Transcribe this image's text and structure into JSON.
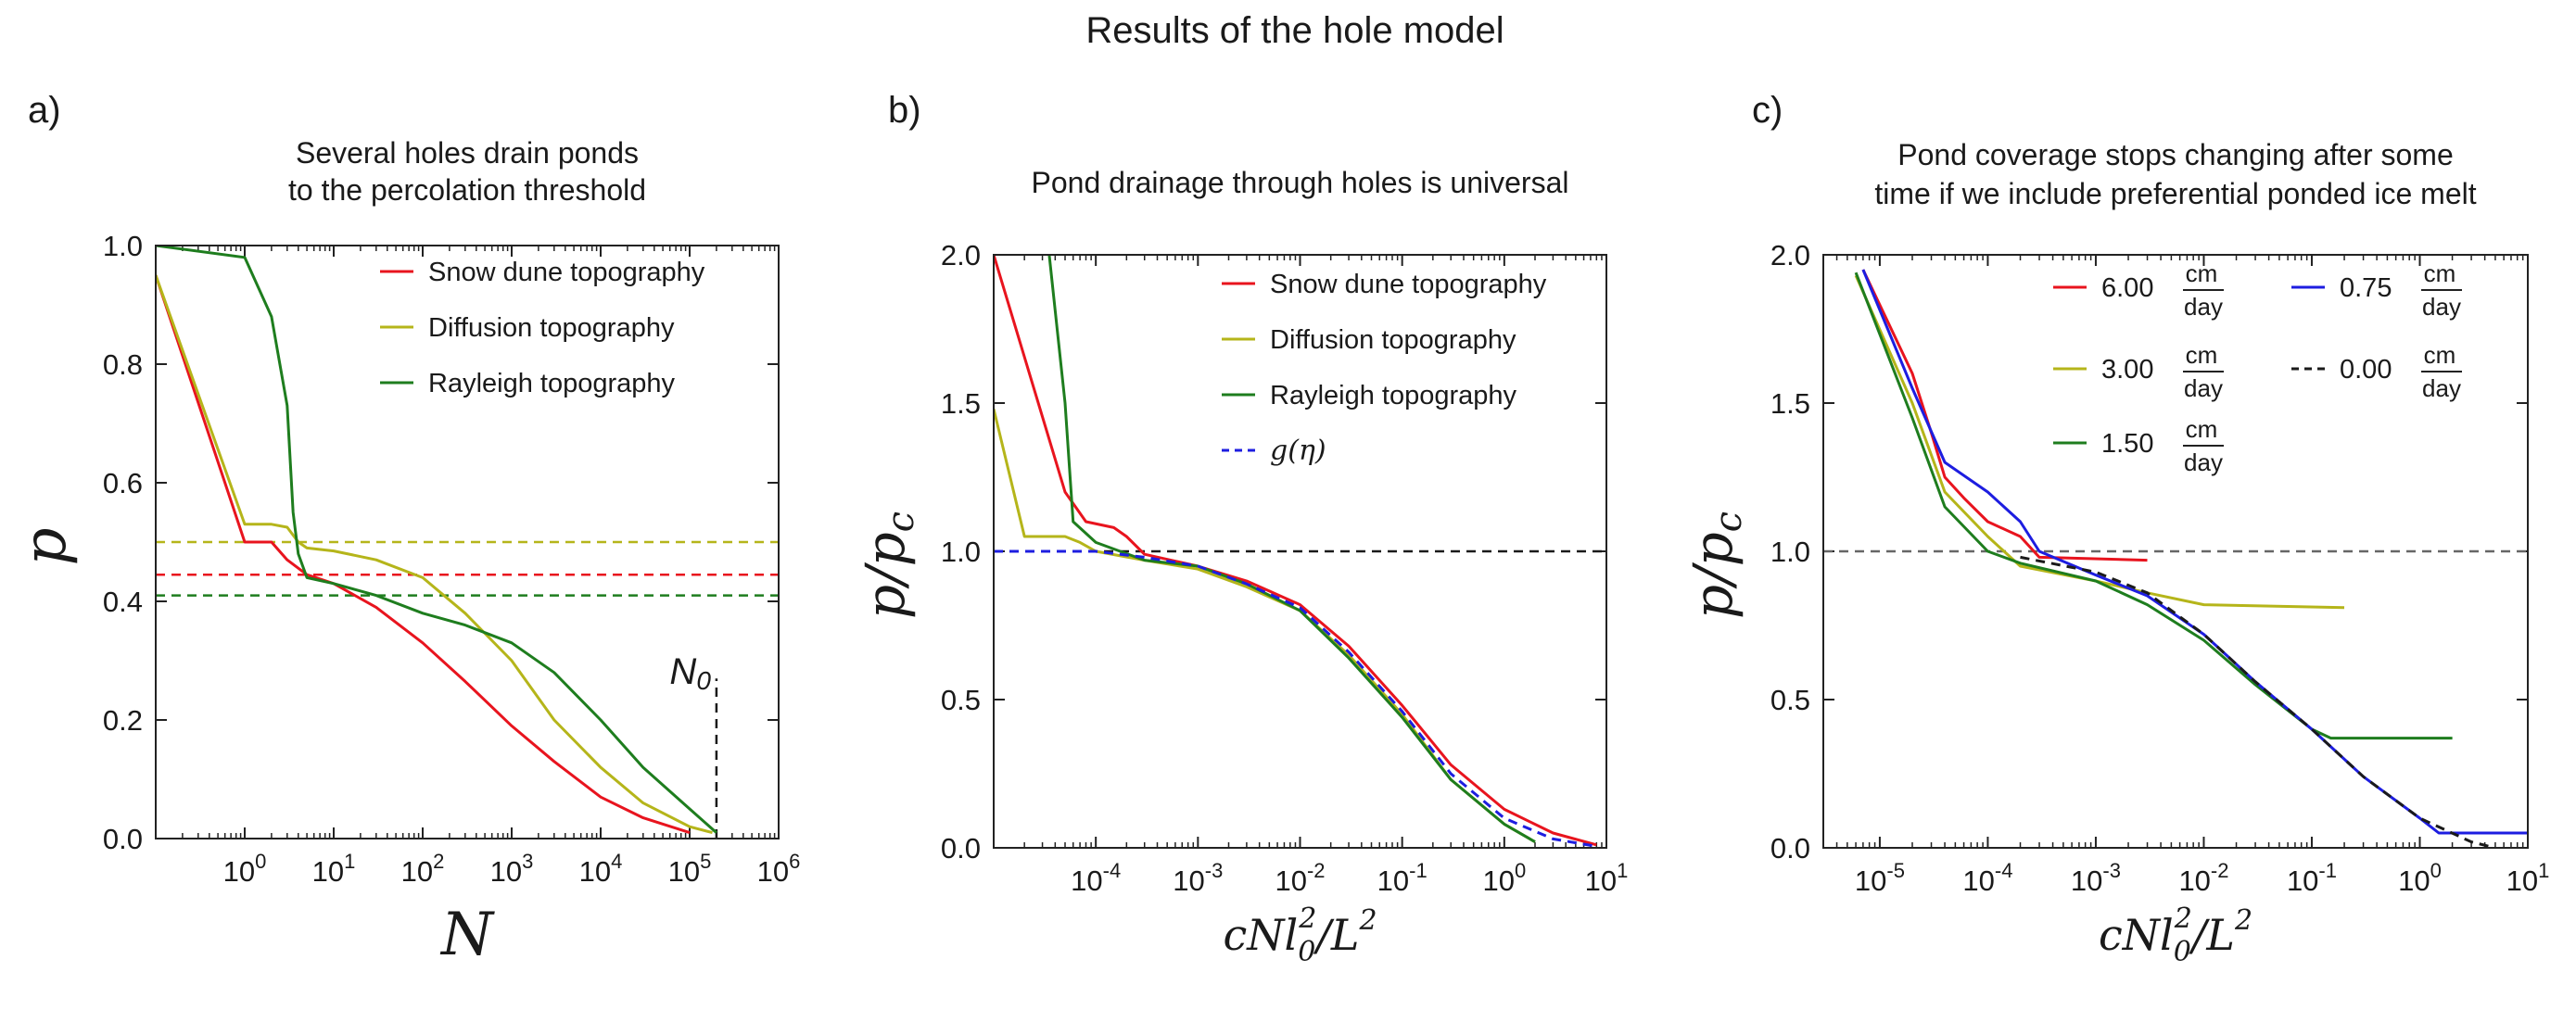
{
  "figure_title": "Results of the hole model",
  "colors": {
    "red": "#e8141e",
    "olive": "#b5b51a",
    "green": "#1e7d1e",
    "blue": "#1d1de0",
    "dashed_black": "#1a1a1a",
    "dashed_gray": "#666666",
    "frame": "#222222"
  },
  "chart_data": [
    {
      "type": "line",
      "panel_label": "a)",
      "title": [
        "Several holes drain ponds",
        "to the percolation threshold"
      ],
      "xlabel": "N",
      "ylabel": "p",
      "xscale": "log",
      "xlim": [
        0.1,
        1000000
      ],
      "ylim": [
        0,
        1.0
      ],
      "xticks": [
        {
          "value": 1,
          "base": "10",
          "exp": "0"
        },
        {
          "value": 10,
          "base": "10",
          "exp": "1"
        },
        {
          "value": 100,
          "base": "10",
          "exp": "2"
        },
        {
          "value": 1000,
          "base": "10",
          "exp": "3"
        },
        {
          "value": 10000,
          "base": "10",
          "exp": "4"
        },
        {
          "value": 100000,
          "base": "10",
          "exp": "5"
        },
        {
          "value": 1000000,
          "base": "10",
          "exp": "6"
        }
      ],
      "yticks": [
        {
          "value": 0.0,
          "label": "0.0"
        },
        {
          "value": 0.2,
          "label": "0.2"
        },
        {
          "value": 0.4,
          "label": "0.4"
        },
        {
          "value": 0.6,
          "label": "0.6"
        },
        {
          "value": 0.8,
          "label": "0.8"
        },
        {
          "value": 1.0,
          "label": "1.0"
        }
      ],
      "legend_position": "top-right",
      "series": [
        {
          "name": "Snow dune topography",
          "color": "red",
          "points": [
            [
              0.1,
              0.95
            ],
            [
              1,
              0.5
            ],
            [
              2,
              0.5
            ],
            [
              3,
              0.47
            ],
            [
              5,
              0.445
            ],
            [
              10,
              0.43
            ],
            [
              30,
              0.39
            ],
            [
              100,
              0.33
            ],
            [
              300,
              0.265
            ],
            [
              1000,
              0.19
            ],
            [
              3000,
              0.13
            ],
            [
              10000,
              0.07
            ],
            [
              30000,
              0.035
            ],
            [
              100000,
              0.01
            ]
          ]
        },
        {
          "name": "Diffusion topography",
          "color": "olive",
          "points": [
            [
              0.1,
              0.95
            ],
            [
              1,
              0.53
            ],
            [
              2,
              0.53
            ],
            [
              3,
              0.525
            ],
            [
              4,
              0.5
            ],
            [
              5,
              0.49
            ],
            [
              10,
              0.485
            ],
            [
              30,
              0.47
            ],
            [
              100,
              0.44
            ],
            [
              300,
              0.38
            ],
            [
              1000,
              0.3
            ],
            [
              3000,
              0.2
            ],
            [
              10000,
              0.12
            ],
            [
              30000,
              0.06
            ],
            [
              100000,
              0.02
            ],
            [
              180000,
              0.01
            ]
          ]
        },
        {
          "name": "Rayleigh topography",
          "color": "green",
          "points": [
            [
              0.1,
              1.0
            ],
            [
              1,
              0.98
            ],
            [
              2,
              0.88
            ],
            [
              3,
              0.73
            ],
            [
              3.5,
              0.55
            ],
            [
              4,
              0.48
            ],
            [
              5,
              0.44
            ],
            [
              10,
              0.43
            ],
            [
              30,
              0.41
            ],
            [
              100,
              0.38
            ],
            [
              300,
              0.36
            ],
            [
              1000,
              0.33
            ],
            [
              3000,
              0.28
            ],
            [
              10000,
              0.2
            ],
            [
              30000,
              0.12
            ],
            [
              100000,
              0.05
            ],
            [
              200000,
              0.01
            ]
          ]
        }
      ],
      "reference_lines": [
        {
          "orientation": "horizontal",
          "value": 0.5,
          "color": "olive",
          "style": "dashed"
        },
        {
          "orientation": "horizontal",
          "value": 0.445,
          "color": "red",
          "style": "dashed"
        },
        {
          "orientation": "horizontal",
          "value": 0.41,
          "color": "green",
          "style": "dashed"
        },
        {
          "orientation": "vertical",
          "value": 200000,
          "from": 0,
          "to": 0.27,
          "color": "dashed_black",
          "style": "dashed"
        }
      ],
      "annotation": {
        "text": "N",
        "subscript": "0",
        "x": 200000,
        "y": 0.27
      }
    },
    {
      "type": "line",
      "panel_label": "b)",
      "title": [
        "Pond drainage through holes is universal"
      ],
      "xlabel": "cNl_0^2/L^2",
      "ylabel": "p/p_c",
      "xscale": "log",
      "xlim": [
        1e-05,
        10
      ],
      "ylim": [
        0,
        2.0
      ],
      "xticks": [
        {
          "value": 0.0001,
          "base": "10",
          "exp": "-4"
        },
        {
          "value": 0.001,
          "base": "10",
          "exp": "-3"
        },
        {
          "value": 0.01,
          "base": "10",
          "exp": "-2"
        },
        {
          "value": 0.1,
          "base": "10",
          "exp": "-1"
        },
        {
          "value": 1,
          "base": "10",
          "exp": "0"
        },
        {
          "value": 10,
          "base": "10",
          "exp": "1"
        }
      ],
      "yticks": [
        {
          "value": 0.0,
          "label": "0.0"
        },
        {
          "value": 0.5,
          "label": "0.5"
        },
        {
          "value": 1.0,
          "label": "1.0"
        },
        {
          "value": 1.5,
          "label": "1.5"
        },
        {
          "value": 2.0,
          "label": "2.0"
        }
      ],
      "legend_position": "top-right",
      "series": [
        {
          "name": "Snow dune topography",
          "color": "red",
          "style": "solid",
          "points": [
            [
              1e-05,
              2.0
            ],
            [
              5e-05,
              1.2
            ],
            [
              8e-05,
              1.1
            ],
            [
              0.00015,
              1.08
            ],
            [
              0.0002,
              1.05
            ],
            [
              0.0003,
              0.99
            ],
            [
              0.001,
              0.95
            ],
            [
              0.003,
              0.9
            ],
            [
              0.01,
              0.82
            ],
            [
              0.03,
              0.68
            ],
            [
              0.1,
              0.48
            ],
            [
              0.3,
              0.28
            ],
            [
              1,
              0.13
            ],
            [
              3,
              0.05
            ],
            [
              8,
              0.01
            ]
          ]
        },
        {
          "name": "Diffusion topography",
          "color": "olive",
          "style": "solid",
          "points": [
            [
              1e-05,
              1.48
            ],
            [
              2e-05,
              1.05
            ],
            [
              5e-05,
              1.05
            ],
            [
              7e-05,
              1.03
            ],
            [
              0.0001,
              1.0
            ],
            [
              0.0003,
              0.97
            ],
            [
              0.001,
              0.94
            ],
            [
              0.003,
              0.88
            ],
            [
              0.01,
              0.8
            ],
            [
              0.03,
              0.65
            ],
            [
              0.1,
              0.45
            ],
            [
              0.3,
              0.23
            ],
            [
              1,
              0.08
            ],
            [
              2,
              0.02
            ]
          ]
        },
        {
          "name": "Rayleigh topography",
          "color": "green",
          "style": "solid",
          "points": [
            [
              3.5e-05,
              2.0
            ],
            [
              5e-05,
              1.5
            ],
            [
              6e-05,
              1.1
            ],
            [
              0.0001,
              1.03
            ],
            [
              0.0003,
              0.97
            ],
            [
              0.001,
              0.95
            ],
            [
              0.003,
              0.89
            ],
            [
              0.01,
              0.8
            ],
            [
              0.03,
              0.64
            ],
            [
              0.1,
              0.44
            ],
            [
              0.3,
              0.23
            ],
            [
              1,
              0.08
            ],
            [
              2,
              0.02
            ]
          ]
        },
        {
          "name": "g(η)",
          "color": "blue",
          "style": "dashed",
          "points": [
            [
              1e-05,
              1.0
            ],
            [
              0.0001,
              1.0
            ],
            [
              0.0003,
              0.98
            ],
            [
              0.001,
              0.95
            ],
            [
              0.003,
              0.89
            ],
            [
              0.01,
              0.81
            ],
            [
              0.03,
              0.66
            ],
            [
              0.1,
              0.46
            ],
            [
              0.3,
              0.25
            ],
            [
              1,
              0.1
            ],
            [
              3,
              0.03
            ],
            [
              8,
              0.005
            ]
          ]
        }
      ],
      "reference_lines": [
        {
          "orientation": "horizontal",
          "value": 1.0,
          "color": "dashed_black",
          "style": "dashed"
        }
      ]
    },
    {
      "type": "line",
      "panel_label": "c)",
      "title": [
        "Pond coverage stops changing after some",
        "time if we include preferential ponded ice melt"
      ],
      "xlabel": "cNl_0^2/L^2",
      "ylabel": "p/p_c",
      "xscale": "log",
      "xlim": [
        3e-06,
        10
      ],
      "ylim": [
        0,
        2.0
      ],
      "xticks": [
        {
          "value": 1e-05,
          "base": "10",
          "exp": "-5"
        },
        {
          "value": 0.0001,
          "base": "10",
          "exp": "-4"
        },
        {
          "value": 0.001,
          "base": "10",
          "exp": "-3"
        },
        {
          "value": 0.01,
          "base": "10",
          "exp": "-2"
        },
        {
          "value": 0.1,
          "base": "10",
          "exp": "-1"
        },
        {
          "value": 1,
          "base": "10",
          "exp": "0"
        },
        {
          "value": 10,
          "base": "10",
          "exp": "1"
        }
      ],
      "yticks": [
        {
          "value": 0.0,
          "label": "0.0"
        },
        {
          "value": 0.5,
          "label": "0.5"
        },
        {
          "value": 1.0,
          "label": "1.0"
        },
        {
          "value": 1.5,
          "label": "1.5"
        },
        {
          "value": 2.0,
          "label": "2.0"
        }
      ],
      "legend_position": "top-right",
      "legend_unit": {
        "numerator": "cm",
        "denominator": "day"
      },
      "series": [
        {
          "name": "6.00",
          "color": "red",
          "style": "solid",
          "points": [
            [
              7e-06,
              1.95
            ],
            [
              2e-05,
              1.6
            ],
            [
              3e-05,
              1.4
            ],
            [
              4e-05,
              1.25
            ],
            [
              6e-05,
              1.18
            ],
            [
              0.0001,
              1.1
            ],
            [
              0.0002,
              1.05
            ],
            [
              0.0003,
              0.98
            ],
            [
              0.003,
              0.97
            ]
          ]
        },
        {
          "name": "3.00",
          "color": "olive",
          "style": "solid",
          "points": [
            [
              6e-06,
              1.93
            ],
            [
              2e-05,
              1.5
            ],
            [
              4e-05,
              1.2
            ],
            [
              0.0001,
              1.05
            ],
            [
              0.0002,
              0.95
            ],
            [
              0.001,
              0.9
            ],
            [
              0.003,
              0.86
            ],
            [
              0.01,
              0.82
            ],
            [
              0.2,
              0.81
            ]
          ]
        },
        {
          "name": "1.50",
          "color": "green",
          "style": "solid",
          "points": [
            [
              6e-06,
              1.94
            ],
            [
              2e-05,
              1.45
            ],
            [
              4e-05,
              1.15
            ],
            [
              0.0001,
              1.0
            ],
            [
              0.0002,
              0.96
            ],
            [
              0.001,
              0.9
            ],
            [
              0.003,
              0.82
            ],
            [
              0.01,
              0.7
            ],
            [
              0.03,
              0.55
            ],
            [
              0.1,
              0.4
            ],
            [
              0.15,
              0.37
            ],
            [
              2,
              0.37
            ]
          ]
        },
        {
          "name": "0.75",
          "color": "blue",
          "style": "solid",
          "points": [
            [
              7e-06,
              1.95
            ],
            [
              2e-05,
              1.55
            ],
            [
              4e-05,
              1.3
            ],
            [
              0.0001,
              1.2
            ],
            [
              0.0002,
              1.1
            ],
            [
              0.0003,
              1.0
            ],
            [
              0.001,
              0.92
            ],
            [
              0.003,
              0.85
            ],
            [
              0.01,
              0.72
            ],
            [
              0.03,
              0.56
            ],
            [
              0.1,
              0.4
            ],
            [
              0.3,
              0.24
            ],
            [
              1,
              0.1
            ],
            [
              1.5,
              0.05
            ],
            [
              10,
              0.05
            ]
          ]
        },
        {
          "name": "0.00",
          "color": "dashed_black",
          "style": "dashed",
          "points": [
            [
              0.0002,
              0.98
            ],
            [
              0.001,
              0.93
            ],
            [
              0.003,
              0.86
            ],
            [
              0.01,
              0.72
            ],
            [
              0.03,
              0.56
            ],
            [
              0.1,
              0.4
            ],
            [
              0.3,
              0.24
            ],
            [
              1,
              0.1
            ],
            [
              3,
              0.02
            ],
            [
              5,
              0.0
            ]
          ]
        }
      ],
      "reference_lines": [
        {
          "orientation": "horizontal",
          "value": 1.0,
          "color": "dashed_gray",
          "style": "dashed"
        }
      ]
    }
  ]
}
